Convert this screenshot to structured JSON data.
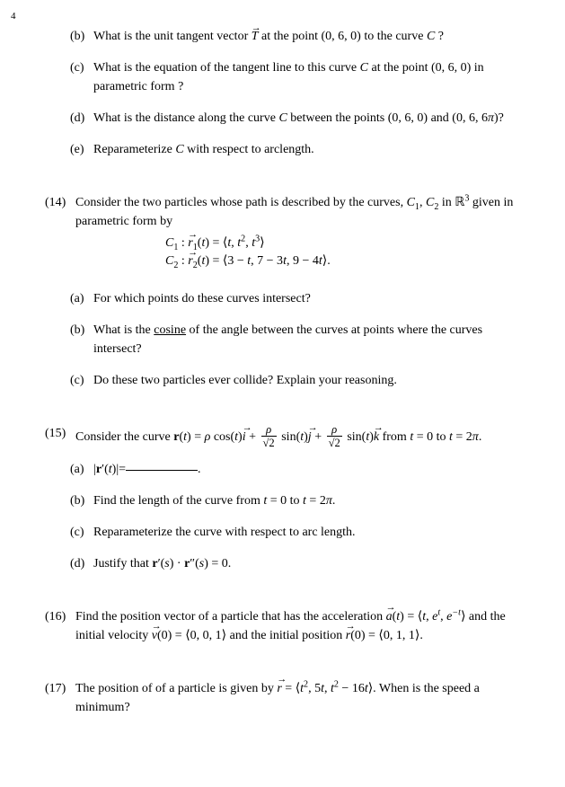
{
  "page_number": "4",
  "top_block": {
    "b": "What is the unit tangent vector {VEC_T} at the point (0, 6, 0) to the curve {CAL_C} ?",
    "c": "What is the equation of the tangent line to this curve {CAL_C} at the point (0, 6, 0) in parametric form ?",
    "d": "What is the distance along the curve {CAL_C} between the points (0, 6, 0) and (0, 6, 6π)?",
    "e": "Reparameterize {CAL_C} with respect to arclength."
  },
  "problem14": {
    "label": "(14)",
    "intro": "Consider the two particles whose path is described by the curves, {CAL_C}{SUB1}, {CAL_C}{SUB2} in ℝ{SUP3} given in parametric form by",
    "eq1": "{CAL_C}{SUB1} : {VEC_r}{SUB1}(t) = ⟨t, t{SUP2}, t{SUP3}⟩",
    "eq2": "{CAL_C}{SUB2} : {VEC_r}{SUB2}(t) = ⟨3 − t, 7 − 3t, 9 − 4t⟩.",
    "a": "For which points do these curves intersect?",
    "b_pre": "What is the ",
    "b_u": "cosine",
    "b_post": " of the angle between the curves at points where the curves intersect?",
    "c": "Do these two particles ever collide? Explain your reasoning."
  },
  "problem15": {
    "label": "(15)",
    "intro_pre": "Consider the curve ",
    "intro_math": "r(t) = ρ cos(t){VEC_i} + {FRAC_RHO_SQRT2} sin(t){VEC_j} + {FRAC_RHO_SQRT2} sin(t){VEC_k}",
    "intro_post": " from t = 0 to t = 2π.",
    "a_pre": "|r′(t)|=",
    "b": "Find the length of the curve from t = 0 to t = 2π.",
    "c": "Reparameterize the curve with respect to arc length.",
    "d": "Justify that r′(s) · r″(s) = 0."
  },
  "problem16": {
    "label": "(16)",
    "text": "Find the position vector of a particle that has the acceleration {VEC_a}(t) = ⟨t, e{SUPt}, e{SUPnegt}⟩ and the initial velocity {VEC_v}(0) = ⟨0, 0, 1⟩ and the initial position {VEC_r}(0) = ⟨0, 1, 1⟩."
  },
  "problem17": {
    "label": "(17)",
    "text": "The position of of a particle is given by {VEC_r} = ⟨t{SUP2}, 5t, t{SUP2} − 16t⟩. When is the speed a minimum?"
  },
  "labels": {
    "a": "(a)",
    "b": "(b)",
    "c": "(c)",
    "d": "(d)",
    "e": "(e)"
  }
}
